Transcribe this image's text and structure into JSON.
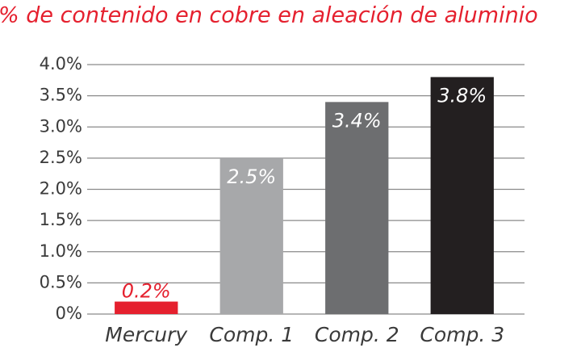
{
  "chart_data": {
    "type": "bar",
    "title": "% de contenido en cobre en aleación de aluminio",
    "categories": [
      "Mercury",
      "Comp. 1",
      "Comp. 2",
      "Comp. 3"
    ],
    "values": [
      0.2,
      2.5,
      3.4,
      3.8
    ],
    "value_labels": [
      "0.2%",
      "2.5%",
      "3.4%",
      "3.8%"
    ],
    "colors": [
      "#e5202e",
      "#a7a8aa",
      "#6d6e70",
      "#231f20"
    ],
    "ylim": [
      0,
      4
    ],
    "yticks": [
      {
        "value": 0,
        "label": "0%"
      },
      {
        "value": 0.5,
        "label": "0.5%"
      },
      {
        "value": 1,
        "label": "1.0%"
      },
      {
        "value": 1.5,
        "label": "1.5%"
      },
      {
        "value": 2,
        "label": "2.0%"
      },
      {
        "value": 2.5,
        "label": "2.5%"
      },
      {
        "value": 3,
        "label": "3.0%"
      },
      {
        "value": 3.5,
        "label": "3.5%"
      },
      {
        "value": 4,
        "label": "4.0%"
      }
    ],
    "grid": true
  }
}
